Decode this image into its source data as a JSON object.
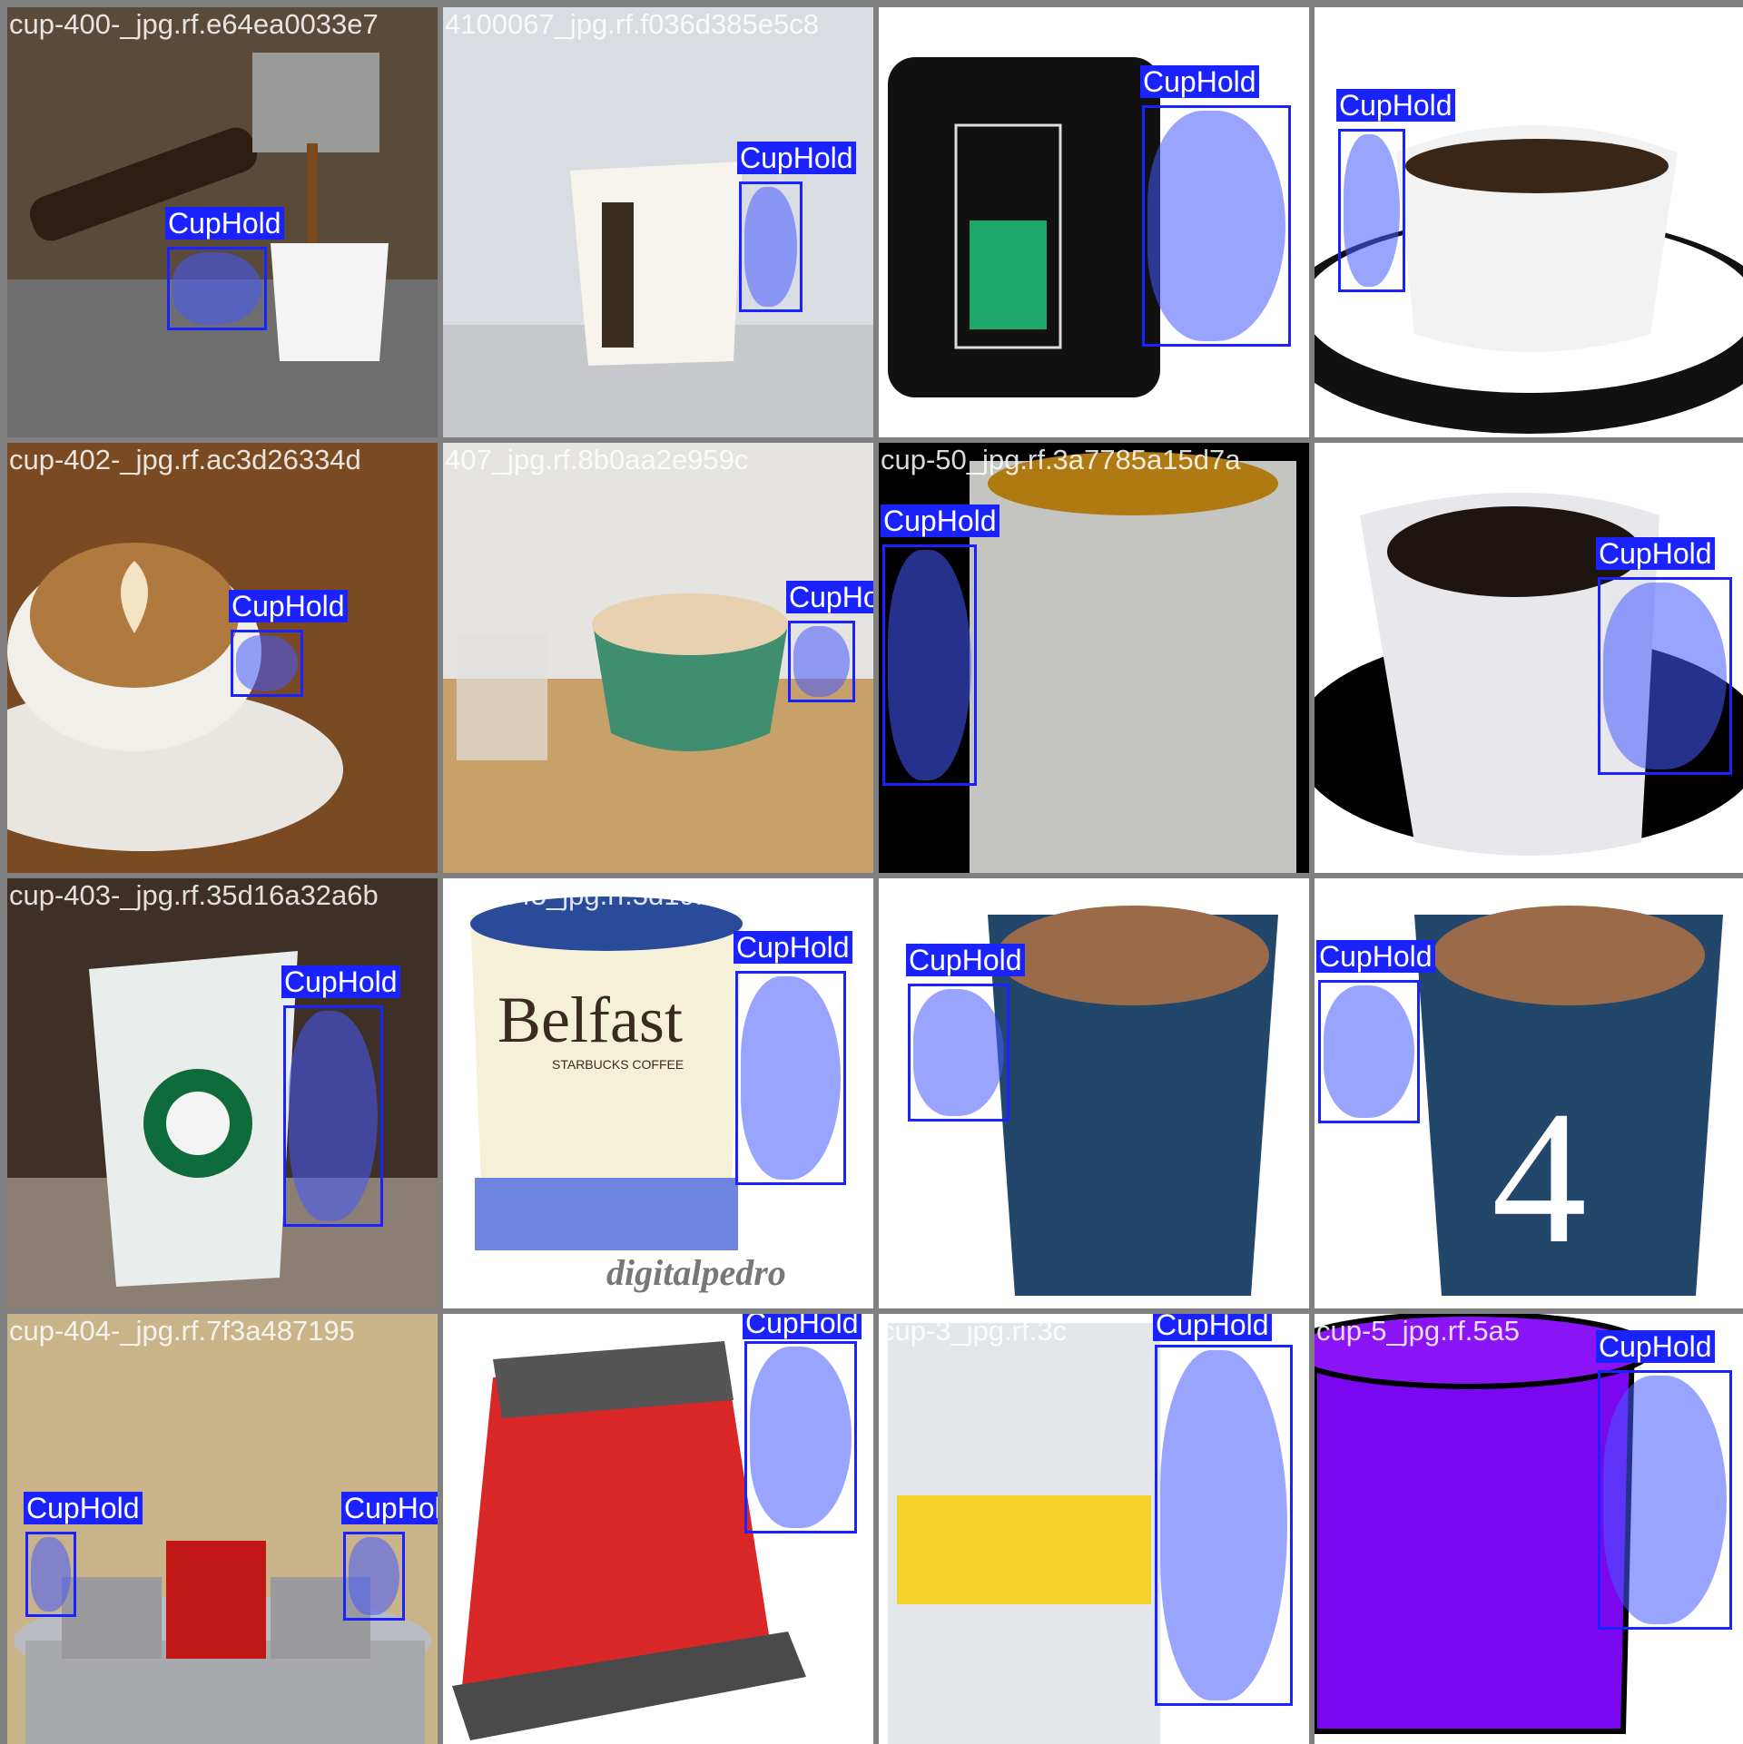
{
  "detection_label": "CupHold",
  "colors": {
    "box": "#1a23ff",
    "mask": "#4657ff",
    "grid_bg": "#808080",
    "label_text": "#ffffff"
  },
  "tiles": [
    {
      "filename": "cup-400-_jpg.rf.e64ea0033e7",
      "label": "CupHold"
    },
    {
      "filename": "4100067_jpg.rf.f036d385e5c8",
      "label": "CupHold"
    },
    {
      "filename": "02154-_jpg.rf.4f92a32f3a9de9",
      "label": "CupHold"
    },
    {
      "filename": "cup-424_jpg.rf.bc55dc75e4",
      "label": "CupHold"
    },
    {
      "filename": "cup-402-_jpg.rf.ac3d26334d",
      "label": "CupHold"
    },
    {
      "filename": "407_jpg.rf.8b0aa2e959c",
      "label": "CupHold"
    },
    {
      "filename": "cup-50_jpg.rf.3a7785a15d7a",
      "label": "CupHold"
    },
    {
      "filename": "cup-425_jpg.rf.57456dc854",
      "label": "CupHold"
    },
    {
      "filename": "cup-403-_jpg.rf.35d16a32a6b",
      "label": "CupHold"
    },
    {
      "filename": "cup-445_jpg.rf.3d19fad62015",
      "label": "CupHold"
    },
    {
      "filename": "cup-3_jpg.rf.4b49bc98bd0e",
      "label": "CupHold"
    },
    {
      "filename": "cup-35_jpg.rf.926ae945c0",
      "label": "CupHold"
    },
    {
      "filename": "cup-404-_jpg.rf.7f3a487195",
      "label": "CupHold"
    },
    {
      "filename": "cup-4_jpg.rf.0eb6",
      "label": "CupHold"
    },
    {
      "filename": "cup-3_jpg.rf.3c",
      "label": "CupHold"
    },
    {
      "filename": "cup-5_jpg.rf.5a5",
      "label": "CupHold"
    }
  ],
  "image_text": {
    "mug_belfast": "Belfast",
    "mug_belfast_sub": "STARBUCKS COFFEE",
    "watermark": "digitalpedro",
    "mug_number": "4"
  }
}
